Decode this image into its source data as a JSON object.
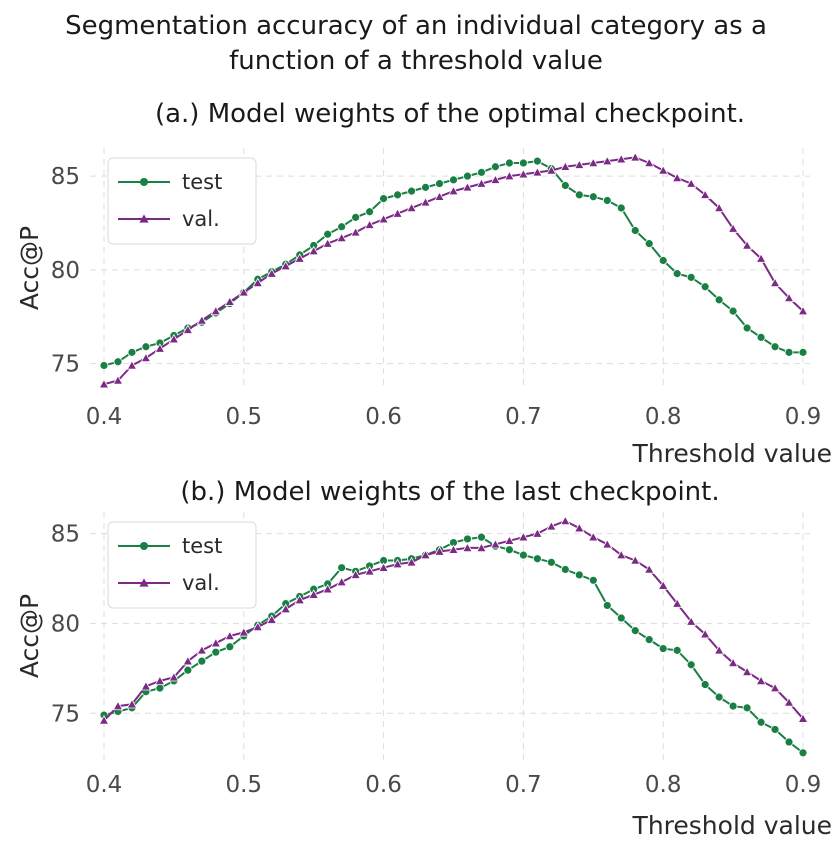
{
  "suptitle": [
    "Segmentation accuracy of an individual category as a",
    "function of a threshold value"
  ],
  "colors": {
    "test": "#1a7f45",
    "val": "#7b2a85"
  },
  "chart_data": [
    {
      "type": "line",
      "title": "(a.) Model weights of the optimal checkpoint.",
      "xlabel": "Threshold value",
      "ylabel": "Acc@P",
      "xlim": [
        0.39,
        0.905
      ],
      "ylim": [
        73.7,
        86.5
      ],
      "xticks": [
        0.4,
        0.5,
        0.6,
        0.7,
        0.8,
        0.9
      ],
      "yticks": [
        75,
        80,
        85
      ],
      "legend_position": "top-left",
      "x": [
        0.4,
        0.41,
        0.42,
        0.43,
        0.44,
        0.45,
        0.46,
        0.47,
        0.48,
        0.49,
        0.5,
        0.51,
        0.52,
        0.53,
        0.54,
        0.55,
        0.56,
        0.57,
        0.58,
        0.59,
        0.6,
        0.61,
        0.62,
        0.63,
        0.64,
        0.65,
        0.66,
        0.67,
        0.68,
        0.69,
        0.7,
        0.71,
        0.72,
        0.73,
        0.74,
        0.75,
        0.76,
        0.77,
        0.78,
        0.79,
        0.8,
        0.81,
        0.82,
        0.83,
        0.84,
        0.85,
        0.86,
        0.87,
        0.88,
        0.89,
        0.9
      ],
      "series": [
        {
          "name": "test",
          "marker": "circle",
          "values": [
            74.9,
            75.1,
            75.6,
            75.9,
            76.1,
            76.5,
            76.9,
            77.2,
            77.7,
            78.2,
            78.8,
            79.5,
            79.9,
            80.3,
            80.8,
            81.3,
            81.9,
            82.3,
            82.8,
            83.1,
            83.8,
            84.0,
            84.2,
            84.4,
            84.6,
            84.8,
            85.0,
            85.2,
            85.5,
            85.7,
            85.7,
            85.8,
            85.4,
            84.5,
            84.0,
            83.9,
            83.7,
            83.3,
            82.1,
            81.4,
            80.5,
            79.8,
            79.6,
            79.1,
            78.4,
            77.8,
            76.9,
            76.4,
            75.9,
            75.6,
            75.6
          ]
        },
        {
          "name": "val.",
          "marker": "triangle",
          "values": [
            73.9,
            74.1,
            74.9,
            75.3,
            75.8,
            76.3,
            76.8,
            77.3,
            77.8,
            78.3,
            78.8,
            79.3,
            79.8,
            80.2,
            80.6,
            81.0,
            81.4,
            81.7,
            82.0,
            82.4,
            82.7,
            83.0,
            83.3,
            83.6,
            83.9,
            84.2,
            84.4,
            84.6,
            84.8,
            85.0,
            85.1,
            85.2,
            85.3,
            85.5,
            85.6,
            85.7,
            85.8,
            85.9,
            86.0,
            85.7,
            85.3,
            84.9,
            84.6,
            84.0,
            83.3,
            82.2,
            81.3,
            80.6,
            79.3,
            78.5,
            77.8
          ]
        }
      ]
    },
    {
      "type": "line",
      "title": "(b.) Model weights of the last checkpoint.",
      "xlabel": "Threshold value",
      "ylabel": "Acc@P",
      "xlim": [
        0.39,
        0.905
      ],
      "ylim": [
        72.4,
        86.2
      ],
      "xticks": [
        0.4,
        0.5,
        0.6,
        0.7,
        0.8,
        0.9
      ],
      "yticks": [
        75,
        80,
        85
      ],
      "legend_position": "top-left",
      "x": [
        0.4,
        0.41,
        0.42,
        0.43,
        0.44,
        0.45,
        0.46,
        0.47,
        0.48,
        0.49,
        0.5,
        0.51,
        0.52,
        0.53,
        0.54,
        0.55,
        0.56,
        0.57,
        0.58,
        0.59,
        0.6,
        0.61,
        0.62,
        0.63,
        0.64,
        0.65,
        0.66,
        0.67,
        0.68,
        0.69,
        0.7,
        0.71,
        0.72,
        0.73,
        0.74,
        0.75,
        0.76,
        0.77,
        0.78,
        0.79,
        0.8,
        0.81,
        0.82,
        0.83,
        0.84,
        0.85,
        0.86,
        0.87,
        0.88,
        0.89,
        0.9
      ],
      "series": [
        {
          "name": "test",
          "marker": "circle",
          "values": [
            74.9,
            75.1,
            75.3,
            76.2,
            76.4,
            76.8,
            77.4,
            77.9,
            78.4,
            78.7,
            79.3,
            79.9,
            80.4,
            81.1,
            81.5,
            81.9,
            82.2,
            83.1,
            82.9,
            83.2,
            83.5,
            83.5,
            83.6,
            83.8,
            84.1,
            84.5,
            84.7,
            84.8,
            84.3,
            84.1,
            83.8,
            83.6,
            83.4,
            83.0,
            82.7,
            82.4,
            81.0,
            80.3,
            79.6,
            79.1,
            78.6,
            78.5,
            77.7,
            76.6,
            75.9,
            75.4,
            75.3,
            74.5,
            74.1,
            73.4,
            72.8
          ]
        },
        {
          "name": "val.",
          "marker": "triangle",
          "values": [
            74.6,
            75.4,
            75.5,
            76.5,
            76.8,
            77.0,
            77.9,
            78.5,
            78.9,
            79.3,
            79.5,
            79.8,
            80.2,
            80.8,
            81.3,
            81.6,
            81.9,
            82.3,
            82.7,
            82.9,
            83.1,
            83.3,
            83.4,
            83.8,
            84.0,
            84.1,
            84.2,
            84.2,
            84.4,
            84.6,
            84.8,
            85.0,
            85.4,
            85.7,
            85.3,
            84.8,
            84.4,
            83.8,
            83.5,
            83.0,
            82.1,
            81.1,
            80.1,
            79.4,
            78.5,
            77.8,
            77.3,
            76.8,
            76.4,
            75.6,
            74.7
          ]
        }
      ]
    }
  ]
}
